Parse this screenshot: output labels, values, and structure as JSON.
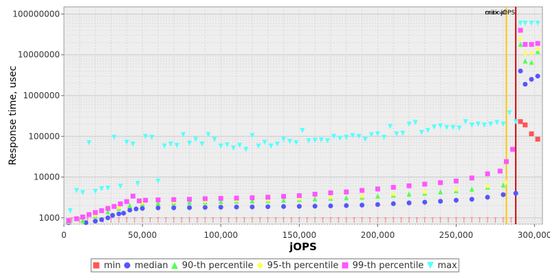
{
  "chart_data": {
    "type": "scatter",
    "title": "",
    "xlabel": "jOPS",
    "ylabel": "Response time, usec",
    "y_scale": "log",
    "xlim": [
      0,
      305000
    ],
    "ylim": [
      700,
      150000000
    ],
    "grid": true,
    "legend_position": "bottom",
    "x_ticks": [
      0,
      50000,
      100000,
      150000,
      200000,
      250000,
      300000
    ],
    "x_tick_labels": [
      "0",
      "50,000",
      "100,000",
      "150,000",
      "200,000",
      "250,000",
      "300,000"
    ],
    "y_ticks": [
      1000,
      10000,
      100000,
      1000000,
      10000000,
      100000000
    ],
    "y_tick_labels": [
      "1000",
      "10000",
      "100000",
      "1000000",
      "10000000",
      "100000000"
    ],
    "markers": [
      {
        "label": "critical",
        "x": 282000,
        "color": "#ffc800"
      },
      {
        "label": "max-jOPS",
        "x": 288000,
        "color": "#cc0000"
      }
    ],
    "series": [
      {
        "name": "min",
        "color": "#ff5555",
        "shape": "square",
        "points": [
          [
            291000,
            230000
          ],
          [
            294000,
            190000
          ],
          [
            298000,
            115000
          ],
          [
            302000,
            85000
          ]
        ]
      },
      {
        "name": "median",
        "color": "#5555ff",
        "shape": "circle",
        "points": [
          [
            3000,
            760
          ],
          [
            14000,
            760
          ],
          [
            20000,
            830
          ],
          [
            24000,
            900
          ],
          [
            28000,
            1000
          ],
          [
            31000,
            1150
          ],
          [
            35000,
            1250
          ],
          [
            38000,
            1300
          ],
          [
            42000,
            1550
          ],
          [
            46000,
            1650
          ],
          [
            50000,
            1700
          ],
          [
            60000,
            1750
          ],
          [
            70000,
            1760
          ],
          [
            80000,
            1780
          ],
          [
            90000,
            1800
          ],
          [
            100000,
            1820
          ],
          [
            110000,
            1840
          ],
          [
            120000,
            1850
          ],
          [
            130000,
            1870
          ],
          [
            140000,
            1890
          ],
          [
            150000,
            1910
          ],
          [
            160000,
            1930
          ],
          [
            170000,
            1960
          ],
          [
            180000,
            2000
          ],
          [
            190000,
            2050
          ],
          [
            200000,
            2120
          ],
          [
            210000,
            2220
          ],
          [
            220000,
            2320
          ],
          [
            230000,
            2420
          ],
          [
            240000,
            2550
          ],
          [
            250000,
            2700
          ],
          [
            260000,
            2850
          ],
          [
            270000,
            3200
          ],
          [
            280000,
            3700
          ],
          [
            288000,
            4000
          ],
          [
            291000,
            4000000
          ],
          [
            294000,
            1900000
          ],
          [
            298000,
            2500000
          ],
          [
            302000,
            3000000
          ]
        ]
      },
      {
        "name": "90-th percentile",
        "color": "#55ff55",
        "shape": "triangle-up",
        "points": [
          [
            3000,
            800
          ],
          [
            12000,
            850
          ],
          [
            20000,
            1100
          ],
          [
            28000,
            1400
          ],
          [
            35000,
            1700
          ],
          [
            42000,
            2000
          ],
          [
            50000,
            2200
          ],
          [
            60000,
            2300
          ],
          [
            70000,
            2350
          ],
          [
            80000,
            2400
          ],
          [
            90000,
            2450
          ],
          [
            100000,
            2500
          ],
          [
            110000,
            2550
          ],
          [
            120000,
            2600
          ],
          [
            130000,
            2650
          ],
          [
            140000,
            2700
          ],
          [
            150000,
            2800
          ],
          [
            160000,
            2900
          ],
          [
            170000,
            3000
          ],
          [
            180000,
            3100
          ],
          [
            190000,
            3200
          ],
          [
            200000,
            3400
          ],
          [
            210000,
            3600
          ],
          [
            220000,
            3800
          ],
          [
            230000,
            4000
          ],
          [
            240000,
            4300
          ],
          [
            250000,
            4600
          ],
          [
            260000,
            5000
          ],
          [
            270000,
            5600
          ],
          [
            280000,
            6300
          ],
          [
            291000,
            18000000
          ],
          [
            294000,
            7000000
          ],
          [
            298000,
            6500000
          ],
          [
            302000,
            12000000
          ]
        ]
      },
      {
        "name": "95-th percentile",
        "color": "#ffff55",
        "shape": "diamond",
        "points": [
          [
            3000,
            820
          ],
          [
            20000,
            1150
          ],
          [
            35000,
            1800
          ],
          [
            50000,
            2350
          ],
          [
            70000,
            2450
          ],
          [
            90000,
            2550
          ],
          [
            110000,
            2650
          ],
          [
            130000,
            2750
          ],
          [
            150000,
            2950
          ],
          [
            170000,
            3200
          ],
          [
            190000,
            3400
          ],
          [
            210000,
            3800
          ],
          [
            230000,
            4300
          ],
          [
            250000,
            5000
          ],
          [
            270000,
            6000
          ],
          [
            282000,
            7500
          ],
          [
            291000,
            25000000
          ],
          [
            294000,
            11000000
          ],
          [
            298000,
            11000000
          ],
          [
            302000,
            14000000
          ]
        ]
      },
      {
        "name": "99-th percentile",
        "color": "#ff55ff",
        "shape": "square",
        "points": [
          [
            3000,
            850
          ],
          [
            8000,
            950
          ],
          [
            12000,
            1050
          ],
          [
            16000,
            1200
          ],
          [
            20000,
            1350
          ],
          [
            24000,
            1500
          ],
          [
            28000,
            1700
          ],
          [
            32000,
            1900
          ],
          [
            36000,
            2200
          ],
          [
            40000,
            2500
          ],
          [
            44000,
            3400
          ],
          [
            48000,
            2600
          ],
          [
            52000,
            2700
          ],
          [
            60000,
            2750
          ],
          [
            70000,
            2800
          ],
          [
            80000,
            2850
          ],
          [
            90000,
            2950
          ],
          [
            100000,
            3000
          ],
          [
            110000,
            3050
          ],
          [
            120000,
            3100
          ],
          [
            130000,
            3200
          ],
          [
            140000,
            3350
          ],
          [
            150000,
            3500
          ],
          [
            160000,
            3800
          ],
          [
            170000,
            4100
          ],
          [
            180000,
            4300
          ],
          [
            190000,
            4700
          ],
          [
            200000,
            5100
          ],
          [
            210000,
            5600
          ],
          [
            220000,
            6100
          ],
          [
            230000,
            6700
          ],
          [
            240000,
            7300
          ],
          [
            250000,
            8000
          ],
          [
            260000,
            9500
          ],
          [
            270000,
            12000
          ],
          [
            278000,
            14000
          ],
          [
            282000,
            24000
          ],
          [
            286000,
            48000
          ],
          [
            291000,
            40000000
          ],
          [
            294000,
            18000000
          ],
          [
            298000,
            18000000
          ],
          [
            302000,
            19000000
          ]
        ]
      },
      {
        "name": "max",
        "color": "#55ffff",
        "shape": "triangle-down",
        "points": [
          [
            4000,
            1500
          ],
          [
            8000,
            4700
          ],
          [
            12000,
            4200
          ],
          [
            16000,
            70000
          ],
          [
            20000,
            4500
          ],
          [
            24000,
            5200
          ],
          [
            28000,
            5400
          ],
          [
            32000,
            95000
          ],
          [
            36000,
            6000
          ],
          [
            40000,
            72000
          ],
          [
            44000,
            65000
          ],
          [
            47000,
            7000
          ],
          [
            52000,
            100000
          ],
          [
            56000,
            95000
          ],
          [
            60000,
            8000
          ],
          [
            64000,
            58000
          ],
          [
            68000,
            65000
          ],
          [
            72000,
            60000
          ],
          [
            76000,
            110000
          ],
          [
            80000,
            68000
          ],
          [
            84000,
            85000
          ],
          [
            88000,
            65000
          ],
          [
            92000,
            110000
          ],
          [
            96000,
            85000
          ],
          [
            100000,
            58000
          ],
          [
            104000,
            62000
          ],
          [
            108000,
            52000
          ],
          [
            112000,
            60000
          ],
          [
            116000,
            48000
          ],
          [
            120000,
            105000
          ],
          [
            124000,
            58000
          ],
          [
            128000,
            72000
          ],
          [
            132000,
            58000
          ],
          [
            136000,
            65000
          ],
          [
            140000,
            85000
          ],
          [
            144000,
            75000
          ],
          [
            148000,
            70000
          ],
          [
            152000,
            140000
          ],
          [
            156000,
            78000
          ],
          [
            160000,
            80000
          ],
          [
            164000,
            82000
          ],
          [
            168000,
            78000
          ],
          [
            172000,
            100000
          ],
          [
            176000,
            90000
          ],
          [
            180000,
            95000
          ],
          [
            184000,
            105000
          ],
          [
            188000,
            100000
          ],
          [
            192000,
            85000
          ],
          [
            196000,
            110000
          ],
          [
            200000,
            115000
          ],
          [
            204000,
            95000
          ],
          [
            208000,
            175000
          ],
          [
            212000,
            115000
          ],
          [
            216000,
            120000
          ],
          [
            220000,
            200000
          ],
          [
            224000,
            220000
          ],
          [
            228000,
            125000
          ],
          [
            232000,
            140000
          ],
          [
            236000,
            170000
          ],
          [
            240000,
            180000
          ],
          [
            244000,
            165000
          ],
          [
            248000,
            165000
          ],
          [
            252000,
            160000
          ],
          [
            256000,
            230000
          ],
          [
            260000,
            190000
          ],
          [
            264000,
            200000
          ],
          [
            268000,
            190000
          ],
          [
            272000,
            200000
          ],
          [
            276000,
            220000
          ],
          [
            280000,
            200000
          ],
          [
            284000,
            380000
          ],
          [
            288000,
            230000
          ],
          [
            291000,
            60000000
          ],
          [
            294000,
            60000000
          ],
          [
            298000,
            60000000
          ],
          [
            302000,
            60000000
          ]
        ]
      }
    ]
  }
}
